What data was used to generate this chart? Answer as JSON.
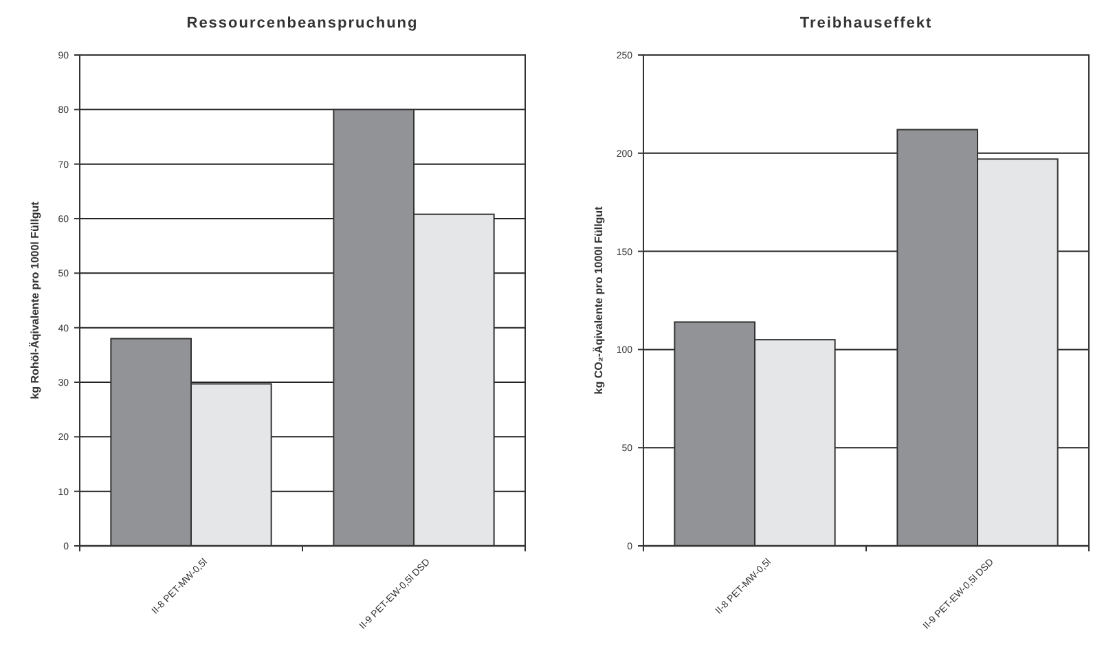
{
  "chart_data": [
    {
      "type": "bar",
      "title": "Ressourcenbeanspruchung",
      "ylabel": "kg Rohöl-Äqivalente pro 1000l Füllgut",
      "categories": [
        "II-8 PET-MW-0,5l",
        "II-9 PET-EW-0,5l DSD"
      ],
      "series": [
        {
          "color": "#929397",
          "values": [
            38,
            80
          ]
        },
        {
          "color": "#e5e6e8",
          "values": [
            29.7,
            60.8
          ]
        }
      ],
      "ylim": [
        0,
        90
      ],
      "yticks": [
        0,
        10,
        20,
        30,
        40,
        50,
        60,
        70,
        80,
        90
      ],
      "grid": "y"
    },
    {
      "type": "bar",
      "title": "Treibhauseffekt",
      "ylabel": "kg CO₂-Äqivalente pro 1000l Füllgut",
      "categories": [
        "II-8 PET-MW-0,5l",
        "II-9 PET-EW-0,5l DSD"
      ],
      "series": [
        {
          "color": "#929397",
          "values": [
            114,
            212
          ]
        },
        {
          "color": "#e5e6e8",
          "values": [
            105,
            197
          ]
        }
      ],
      "ylim": [
        0,
        250
      ],
      "yticks": [
        0,
        50,
        100,
        150,
        200,
        250
      ],
      "grid": "y"
    }
  ]
}
